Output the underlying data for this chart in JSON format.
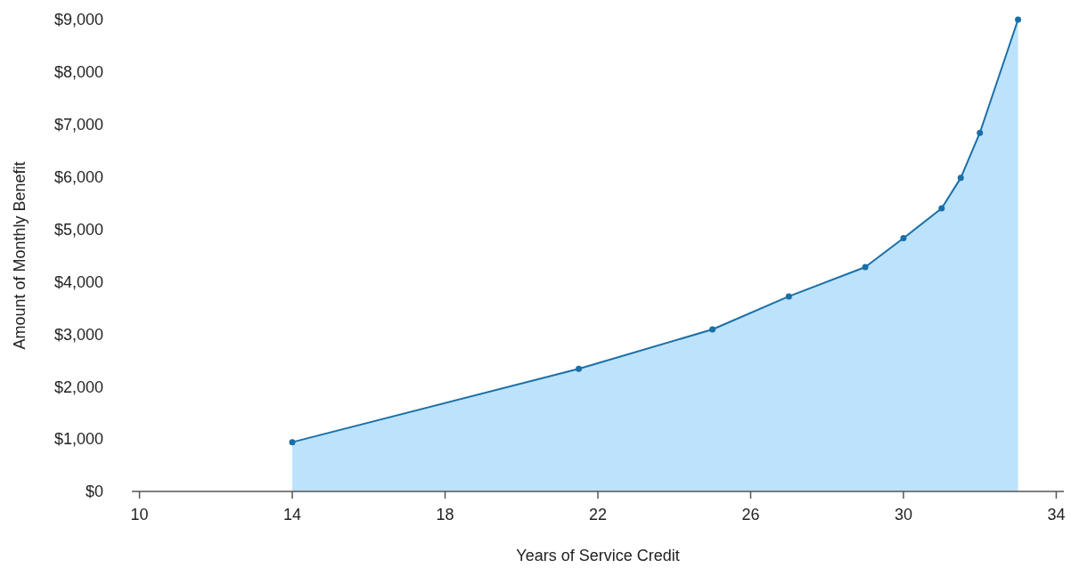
{
  "chart_data": {
    "type": "area",
    "xlabel": "Years of Service Credit",
    "ylabel": "Amount of Monthly Benefit",
    "x": [
      14,
      21.5,
      25,
      27,
      29,
      30,
      31,
      31.5,
      32,
      33
    ],
    "series": [
      {
        "color": "#1a6fa8",
        "values": [
          940,
          2340,
          3090,
          3720,
          4280,
          4830,
          5400,
          5980,
          6840,
          9000
        ]
      }
    ],
    "xlim": [
      9.8,
      34.2
    ],
    "xticks": [
      10,
      14,
      18,
      22,
      26,
      30,
      34
    ],
    "ylim": [
      0,
      9000
    ],
    "yticks": [
      {
        "value": 0,
        "label": "$0"
      },
      {
        "value": 1000,
        "label": "$1,000"
      },
      {
        "value": 2000,
        "label": "$2,000"
      },
      {
        "value": 3000,
        "label": "$3,000"
      },
      {
        "value": 4000,
        "label": "$4,000"
      },
      {
        "value": 5000,
        "label": "$5,000"
      },
      {
        "value": 6000,
        "label": "$6,000"
      },
      {
        "value": 7000,
        "label": "$7,000"
      },
      {
        "value": 8000,
        "label": "$8,000"
      },
      {
        "value": 9000,
        "label": "$9,000"
      }
    ],
    "marker": "circle",
    "grid": false
  }
}
